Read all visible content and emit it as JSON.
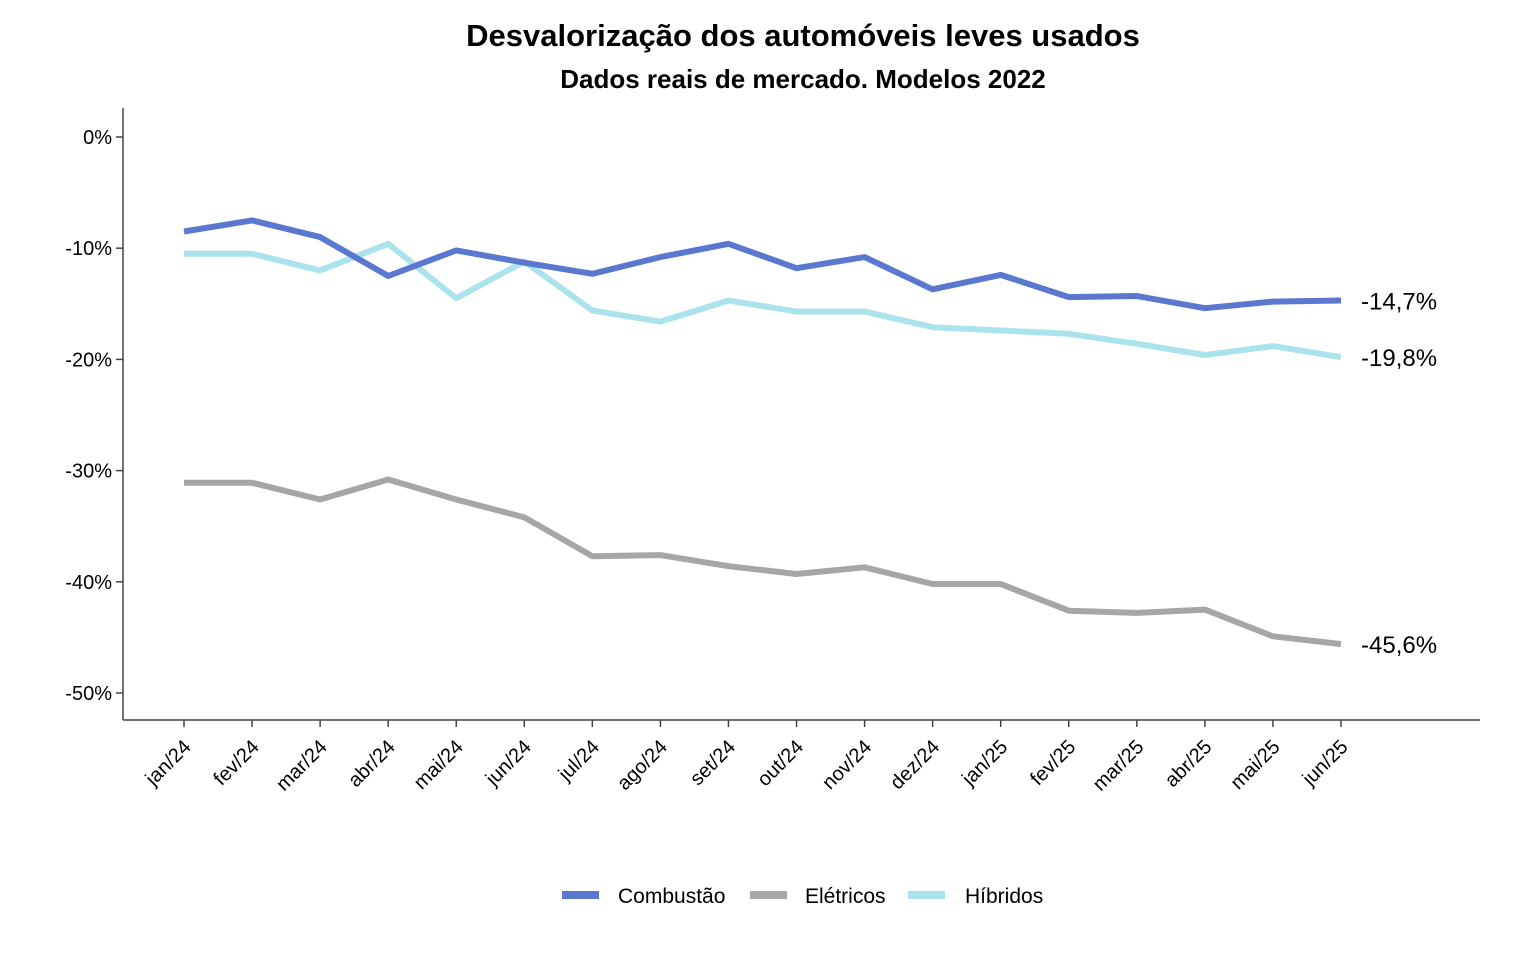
{
  "chart_data": {
    "type": "line",
    "title": "Desvalorização dos automóveis leves usados",
    "subtitle": "Dados reais de mercado. Modelos 2022",
    "xlabel": "",
    "ylabel": "",
    "ylim": [
      -52.5,
      2.5
    ],
    "yticks": [
      0,
      -10,
      -20,
      -30,
      -40,
      -50
    ],
    "ytick_labels": [
      "0%",
      "-10%",
      "-20%",
      "-30%",
      "-40%",
      "-50%"
    ],
    "grid": false,
    "legend_position": "bottom",
    "categories": [
      "jan/24",
      "fev/24",
      "mar/24",
      "abr/24",
      "mai/24",
      "jun/24",
      "jul/24",
      "ago/24",
      "set/24",
      "out/24",
      "nov/24",
      "dez/24",
      "jan/25",
      "fev/25",
      "mar/25",
      "abr/25",
      "mai/25",
      "jun/25"
    ],
    "series": [
      {
        "name": "Combustão",
        "color": "#5b78d0",
        "values": [
          -8.5,
          -7.5,
          -9.0,
          -12.5,
          -10.2,
          -11.3,
          -12.3,
          -10.8,
          -9.6,
          -11.8,
          -10.8,
          -13.7,
          -12.4,
          -14.4,
          -14.3,
          -15.4,
          -14.8,
          -14.7
        ],
        "end_label": "-14,7%"
      },
      {
        "name": "Elétricos",
        "color": "#a6a6a6",
        "values": [
          -31.1,
          -31.1,
          -32.6,
          -30.8,
          -32.6,
          -34.2,
          -37.7,
          -37.6,
          -38.6,
          -39.3,
          -38.7,
          -40.2,
          -40.2,
          -42.6,
          -42.8,
          -42.5,
          -44.9,
          -45.6
        ],
        "end_label": "-45,6%"
      },
      {
        "name": "Híbridos",
        "color": "#abe3ed",
        "values": [
          -10.5,
          -10.5,
          -12.0,
          -9.6,
          -14.5,
          -11.2,
          -15.6,
          -16.6,
          -14.7,
          -15.7,
          -15.7,
          -17.1,
          -17.4,
          -17.7,
          -18.6,
          -19.6,
          -18.8,
          -19.8
        ],
        "end_label": "-19,8%"
      }
    ]
  }
}
